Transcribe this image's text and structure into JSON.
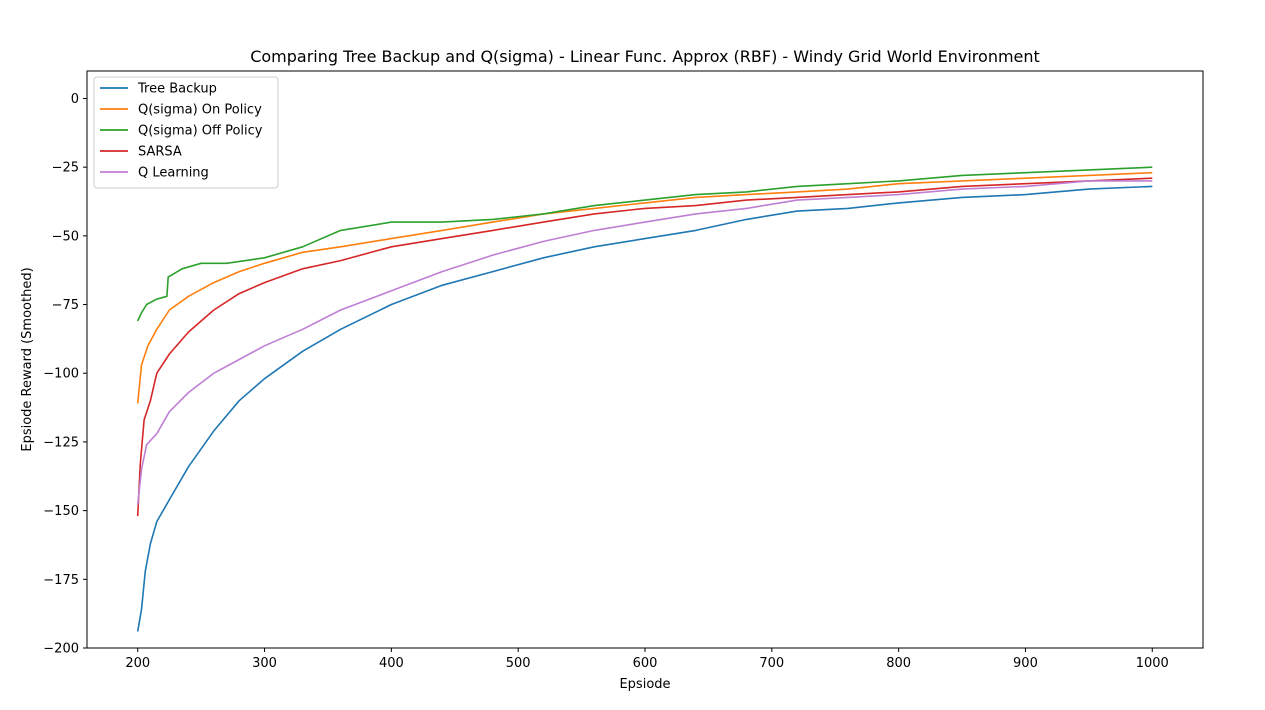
{
  "chart_data": {
    "type": "line",
    "title": "Comparing Tree Backup and Q(sigma) - Linear Func. Approx (RBF) - Windy Grid World Environment",
    "xlabel": "Epsiode",
    "ylabel": "Epsiode Reward (Smoothed)",
    "xlim": [
      160,
      1040
    ],
    "ylim": [
      -200,
      10
    ],
    "xticks": [
      200,
      300,
      400,
      500,
      600,
      700,
      800,
      900,
      1000
    ],
    "yticks": [
      0,
      -25,
      -50,
      -75,
      -100,
      -125,
      -150,
      -175,
      -200
    ],
    "xtick_labels": [
      "200",
      "300",
      "400",
      "500",
      "600",
      "700",
      "800",
      "900",
      "1000"
    ],
    "ytick_labels": [
      "0",
      "−25",
      "−50",
      "−75",
      "−100",
      "−125",
      "−150",
      "−175",
      "−200"
    ],
    "grid": false,
    "legend_position": "top-left",
    "series": [
      {
        "name": "Tree Backup",
        "color": "#1f77b4",
        "points": [
          [
            200,
            -194
          ],
          [
            203,
            -186
          ],
          [
            206,
            -172
          ],
          [
            210,
            -162
          ],
          [
            215,
            -154
          ],
          [
            225,
            -146
          ],
          [
            240,
            -134
          ],
          [
            260,
            -121
          ],
          [
            280,
            -110
          ],
          [
            300,
            -102
          ],
          [
            330,
            -92
          ],
          [
            360,
            -84
          ],
          [
            400,
            -75
          ],
          [
            440,
            -68
          ],
          [
            480,
            -63
          ],
          [
            520,
            -58
          ],
          [
            560,
            -54
          ],
          [
            600,
            -51
          ],
          [
            640,
            -48
          ],
          [
            680,
            -44
          ],
          [
            720,
            -41
          ],
          [
            760,
            -40
          ],
          [
            800,
            -38
          ],
          [
            850,
            -36
          ],
          [
            900,
            -35
          ],
          [
            950,
            -33
          ],
          [
            1000,
            -32
          ]
        ]
      },
      {
        "name": "Q(sigma) On Policy",
        "color": "#ff7f0e",
        "points": [
          [
            200,
            -111
          ],
          [
            203,
            -97
          ],
          [
            208,
            -90
          ],
          [
            215,
            -84
          ],
          [
            225,
            -77
          ],
          [
            240,
            -72
          ],
          [
            260,
            -67
          ],
          [
            280,
            -63
          ],
          [
            300,
            -60
          ],
          [
            330,
            -56
          ],
          [
            360,
            -54
          ],
          [
            400,
            -51
          ],
          [
            440,
            -48
          ],
          [
            480,
            -45
          ],
          [
            520,
            -42
          ],
          [
            560,
            -40
          ],
          [
            600,
            -38
          ],
          [
            640,
            -36
          ],
          [
            680,
            -35
          ],
          [
            720,
            -34
          ],
          [
            760,
            -33
          ],
          [
            800,
            -31
          ],
          [
            850,
            -30
          ],
          [
            900,
            -29
          ],
          [
            950,
            -28
          ],
          [
            1000,
            -27
          ]
        ]
      },
      {
        "name": "Q(sigma) Off Policy",
        "color": "#2ca02c",
        "points": [
          [
            200,
            -81
          ],
          [
            203,
            -78
          ],
          [
            207,
            -75
          ],
          [
            215,
            -73
          ],
          [
            223,
            -72
          ],
          [
            224,
            -65
          ],
          [
            235,
            -62
          ],
          [
            250,
            -60
          ],
          [
            270,
            -60
          ],
          [
            300,
            -58
          ],
          [
            330,
            -54
          ],
          [
            360,
            -48
          ],
          [
            400,
            -45
          ],
          [
            440,
            -45
          ],
          [
            480,
            -44
          ],
          [
            520,
            -42
          ],
          [
            560,
            -39
          ],
          [
            600,
            -37
          ],
          [
            640,
            -35
          ],
          [
            680,
            -34
          ],
          [
            720,
            -32
          ],
          [
            760,
            -31
          ],
          [
            800,
            -30
          ],
          [
            850,
            -28
          ],
          [
            900,
            -27
          ],
          [
            950,
            -26
          ],
          [
            1000,
            -25
          ]
        ]
      },
      {
        "name": "SARSA",
        "color": "#d62728",
        "points": [
          [
            200,
            -152
          ],
          [
            202,
            -133
          ],
          [
            205,
            -117
          ],
          [
            210,
            -110
          ],
          [
            215,
            -100
          ],
          [
            225,
            -93
          ],
          [
            240,
            -85
          ],
          [
            260,
            -77
          ],
          [
            280,
            -71
          ],
          [
            300,
            -67
          ],
          [
            330,
            -62
          ],
          [
            360,
            -59
          ],
          [
            400,
            -54
          ],
          [
            440,
            -51
          ],
          [
            480,
            -48
          ],
          [
            520,
            -45
          ],
          [
            560,
            -42
          ],
          [
            600,
            -40
          ],
          [
            640,
            -39
          ],
          [
            680,
            -37
          ],
          [
            720,
            -36
          ],
          [
            760,
            -35
          ],
          [
            800,
            -34
          ],
          [
            850,
            -32
          ],
          [
            900,
            -31
          ],
          [
            950,
            -30
          ],
          [
            1000,
            -29
          ]
        ]
      },
      {
        "name": "Q Learning",
        "color": "#bf7fd4",
        "points": [
          [
            200,
            -148
          ],
          [
            203,
            -135
          ],
          [
            207,
            -126
          ],
          [
            215,
            -122
          ],
          [
            225,
            -114
          ],
          [
            240,
            -107
          ],
          [
            260,
            -100
          ],
          [
            280,
            -95
          ],
          [
            300,
            -90
          ],
          [
            330,
            -84
          ],
          [
            360,
            -77
          ],
          [
            400,
            -70
          ],
          [
            440,
            -63
          ],
          [
            480,
            -57
          ],
          [
            520,
            -52
          ],
          [
            560,
            -48
          ],
          [
            600,
            -45
          ],
          [
            640,
            -42
          ],
          [
            680,
            -40
          ],
          [
            720,
            -37
          ],
          [
            760,
            -36
          ],
          [
            800,
            -35
          ],
          [
            850,
            -33
          ],
          [
            900,
            -32
          ],
          [
            950,
            -30
          ],
          [
            1000,
            -30
          ]
        ]
      }
    ]
  }
}
